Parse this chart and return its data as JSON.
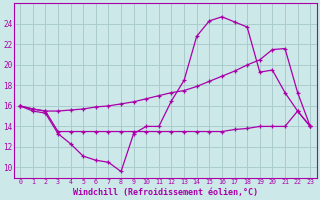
{
  "background_color": "#cce8e8",
  "grid_color": "#aacccc",
  "line_color": "#aa00aa",
  "xlabel": "Windchill (Refroidissement éolien,°C)",
  "xlim": [
    -0.5,
    23.5
  ],
  "ylim": [
    9.0,
    26.0
  ],
  "yticks": [
    10,
    12,
    14,
    16,
    18,
    20,
    22,
    24
  ],
  "xticks": [
    0,
    1,
    2,
    3,
    4,
    5,
    6,
    7,
    8,
    9,
    10,
    11,
    12,
    13,
    14,
    15,
    16,
    17,
    18,
    19,
    20,
    21,
    22,
    23
  ],
  "series1_x": [
    0,
    1,
    2,
    3,
    4,
    5,
    6,
    7,
    8,
    9,
    10,
    11,
    12,
    13,
    14,
    15,
    16,
    17,
    18,
    19,
    20,
    21,
    22,
    23
  ],
  "series1_y": [
    16.0,
    15.5,
    15.3,
    13.3,
    12.3,
    11.1,
    10.7,
    10.5,
    9.6,
    13.3,
    14.0,
    14.0,
    16.5,
    18.5,
    22.8,
    24.3,
    24.7,
    24.2,
    23.7,
    19.3,
    19.5,
    17.3,
    15.5,
    14.0
  ],
  "series2_x": [
    0,
    1,
    2,
    3,
    4,
    5,
    6,
    7,
    8,
    9,
    10,
    11,
    12,
    13,
    14,
    15,
    16,
    17,
    18,
    19,
    20,
    21,
    22,
    23
  ],
  "series2_y": [
    16.0,
    15.7,
    15.5,
    15.5,
    15.6,
    15.7,
    15.9,
    16.0,
    16.2,
    16.4,
    16.7,
    17.0,
    17.3,
    17.5,
    17.9,
    18.4,
    18.9,
    19.4,
    20.0,
    20.5,
    21.5,
    21.6,
    17.3,
    14.0
  ],
  "series3_x": [
    0,
    1,
    2,
    3,
    4,
    5,
    6,
    7,
    8,
    9,
    10,
    11,
    12,
    13,
    14,
    15,
    16,
    17,
    18,
    19,
    20,
    21,
    22,
    23
  ],
  "series3_y": [
    16.0,
    15.7,
    15.5,
    13.5,
    13.5,
    13.5,
    13.5,
    13.5,
    13.5,
    13.5,
    13.5,
    13.5,
    13.5,
    13.5,
    13.5,
    13.5,
    13.5,
    13.7,
    13.8,
    14.0,
    14.0,
    14.0,
    15.5,
    14.0
  ]
}
